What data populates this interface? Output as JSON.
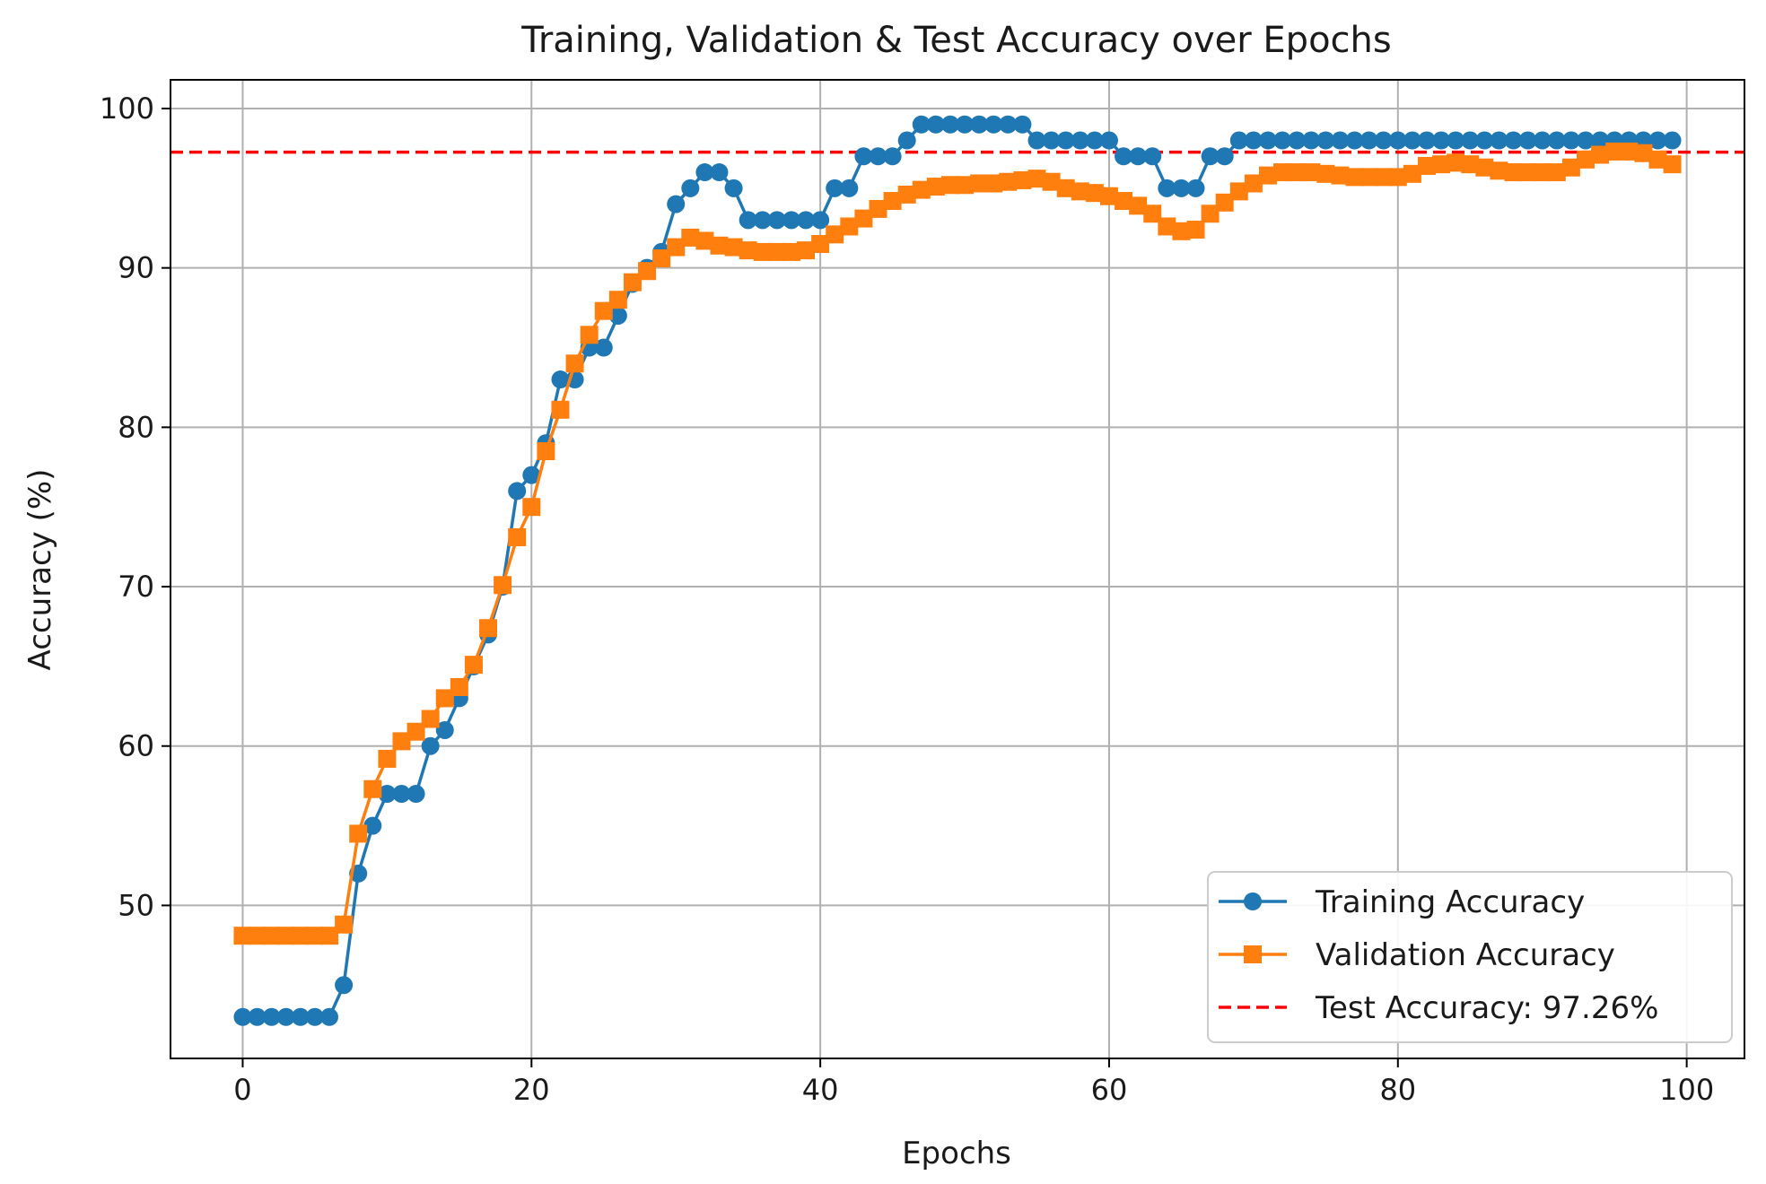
{
  "chart_data": {
    "type": "line",
    "title": "Training, Validation & Test Accuracy over Epochs",
    "xlabel": "Epochs",
    "ylabel": "Accuracy (%)",
    "xlim": [
      -5,
      104
    ],
    "ylim": [
      40.4,
      101.8
    ],
    "xticks": [
      0,
      20,
      40,
      60,
      80,
      100
    ],
    "yticks": [
      50,
      60,
      70,
      80,
      90,
      100
    ],
    "grid": true,
    "legend_position": "lower-right",
    "x": [
      0,
      1,
      2,
      3,
      4,
      5,
      6,
      7,
      8,
      9,
      10,
      11,
      12,
      13,
      14,
      15,
      16,
      17,
      18,
      19,
      20,
      21,
      22,
      23,
      24,
      25,
      26,
      27,
      28,
      29,
      30,
      31,
      32,
      33,
      34,
      35,
      36,
      37,
      38,
      39,
      40,
      41,
      42,
      43,
      44,
      45,
      46,
      47,
      48,
      49,
      50,
      51,
      52,
      53,
      54,
      55,
      56,
      57,
      58,
      59,
      60,
      61,
      62,
      63,
      64,
      65,
      66,
      67,
      68,
      69,
      70,
      71,
      72,
      73,
      74,
      75,
      76,
      77,
      78,
      79,
      80,
      81,
      82,
      83,
      84,
      85,
      86,
      87,
      88,
      89,
      90,
      91,
      92,
      93,
      94,
      95,
      96,
      97,
      98,
      99
    ],
    "series": [
      {
        "name": "Training Accuracy",
        "color": "#1f77b4",
        "marker": "circle",
        "values": [
          43,
          43,
          43,
          43,
          43,
          43,
          43,
          45,
          52,
          55,
          57,
          57,
          57,
          60,
          61,
          63,
          65,
          67,
          70,
          76,
          77,
          79,
          83,
          83,
          85,
          85,
          87,
          89,
          90,
          91,
          94,
          95,
          96,
          96,
          95,
          93,
          93,
          93,
          93,
          93,
          93,
          95,
          95,
          97,
          97,
          97,
          98,
          99,
          99,
          99,
          99,
          99,
          99,
          99,
          99,
          98,
          98,
          98,
          98,
          98,
          98,
          97,
          97,
          97,
          95,
          95,
          95,
          97,
          97,
          98,
          98,
          98,
          98,
          98,
          98,
          98,
          98,
          98,
          98,
          98,
          98,
          98,
          98,
          98,
          98,
          98,
          98,
          98,
          98,
          98,
          98,
          98,
          98,
          98,
          98,
          98,
          98,
          98,
          98,
          98
        ]
      },
      {
        "name": "Validation Accuracy",
        "color": "#ff7f0e",
        "marker": "square",
        "values": [
          48.1,
          48.1,
          48.1,
          48.1,
          48.1,
          48.1,
          48.1,
          48.8,
          54.5,
          57.3,
          59.2,
          60.3,
          60.9,
          61.7,
          63.0,
          63.7,
          65.1,
          67.4,
          70.1,
          73.1,
          75.0,
          78.5,
          81.1,
          84.0,
          85.8,
          87.3,
          88.0,
          89.1,
          89.8,
          90.6,
          91.3,
          91.9,
          91.7,
          91.4,
          91.3,
          91.1,
          91.0,
          91.0,
          91.0,
          91.1,
          91.5,
          92.1,
          92.6,
          93.1,
          93.7,
          94.2,
          94.6,
          94.9,
          95.1,
          95.2,
          95.2,
          95.3,
          95.3,
          95.4,
          95.5,
          95.6,
          95.4,
          95.0,
          94.8,
          94.7,
          94.5,
          94.2,
          93.9,
          93.4,
          92.6,
          92.3,
          92.4,
          93.4,
          94.1,
          94.8,
          95.3,
          95.8,
          96.0,
          96.0,
          96.0,
          95.9,
          95.8,
          95.7,
          95.7,
          95.7,
          95.7,
          95.9,
          96.4,
          96.5,
          96.6,
          96.5,
          96.3,
          96.1,
          96.0,
          96.0,
          96.0,
          96.0,
          96.3,
          96.8,
          97.1,
          97.3,
          97.3,
          97.2,
          96.8,
          96.5
        ]
      }
    ],
    "reference_lines": [
      {
        "name": "Test Accuracy: 97.26%",
        "value": 97.26,
        "color": "#ff0000",
        "style": "dashed"
      }
    ]
  }
}
